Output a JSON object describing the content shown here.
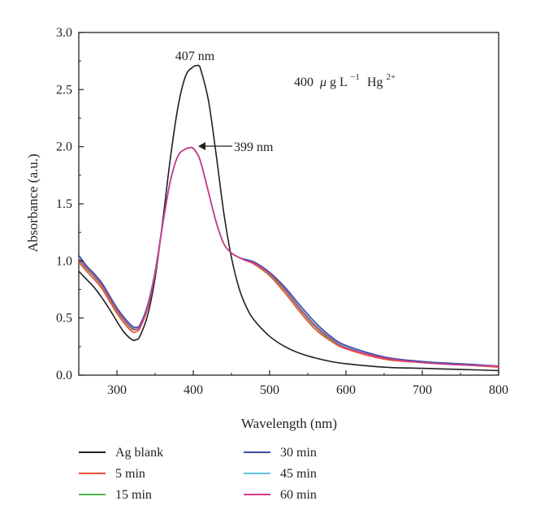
{
  "chart_data": {
    "type": "line",
    "title": "",
    "xlabel": "Wavelength (nm)",
    "ylabel": "Absorbance (a.u.)",
    "xlim": [
      250,
      800
    ],
    "ylim": [
      0,
      3.0
    ],
    "xticks": [
      "300",
      "400",
      "500",
      "600",
      "700",
      "800"
    ],
    "yticks": [
      "0.0",
      "0.5",
      "1.0",
      "1.5",
      "2.0",
      "2.5",
      "3.0"
    ],
    "grid": false,
    "legend_position": "bottom",
    "annotations": {
      "peak_blank": "407 nm",
      "peak_sample": "399 nm",
      "condition": {
        "amount": "400",
        "mu": "μ",
        "g": "g L",
        "sup1": "−1",
        "ion": "Hg",
        "sup2": "2+"
      }
    },
    "series": [
      {
        "name": "Ag blank",
        "color": "#231f20",
        "x": [
          250,
          260,
          270,
          280,
          290,
          300,
          310,
          320,
          325,
          330,
          340,
          350,
          360,
          370,
          380,
          390,
          400,
          405,
          407,
          410,
          420,
          430,
          440,
          450,
          460,
          470,
          480,
          500,
          520,
          540,
          560,
          580,
          600,
          650,
          700,
          750,
          800
        ],
        "y": [
          0.91,
          0.84,
          0.77,
          0.68,
          0.58,
          0.47,
          0.37,
          0.31,
          0.31,
          0.34,
          0.52,
          0.85,
          1.35,
          1.9,
          2.35,
          2.62,
          2.7,
          2.71,
          2.71,
          2.67,
          2.4,
          1.93,
          1.42,
          1.03,
          0.76,
          0.59,
          0.48,
          0.34,
          0.25,
          0.19,
          0.15,
          0.12,
          0.1,
          0.07,
          0.06,
          0.05,
          0.04
        ]
      },
      {
        "name": "5 min",
        "color": "#e8502f",
        "x": [
          250,
          260,
          270,
          280,
          290,
          300,
          310,
          320,
          325,
          330,
          340,
          350,
          360,
          370,
          380,
          390,
          395,
          399,
          405,
          410,
          420,
          430,
          440,
          450,
          460,
          470,
          480,
          500,
          520,
          540,
          560,
          580,
          600,
          650,
          700,
          750,
          800
        ],
        "y": [
          0.99,
          0.91,
          0.84,
          0.76,
          0.65,
          0.54,
          0.45,
          0.38,
          0.38,
          0.41,
          0.58,
          0.89,
          1.32,
          1.7,
          1.92,
          1.98,
          1.99,
          1.99,
          1.94,
          1.86,
          1.6,
          1.34,
          1.15,
          1.07,
          1.03,
          1.0,
          0.97,
          0.87,
          0.72,
          0.55,
          0.4,
          0.3,
          0.23,
          0.14,
          0.11,
          0.09,
          0.07
        ]
      },
      {
        "name": "15 min",
        "color": "#4db848",
        "x": [
          250,
          260,
          270,
          280,
          290,
          300,
          310,
          320,
          325,
          330,
          340,
          350,
          360,
          370,
          380,
          390,
          395,
          399,
          405,
          410,
          420,
          430,
          440,
          450,
          460,
          470,
          480,
          500,
          520,
          540,
          560,
          580,
          600,
          650,
          700,
          750,
          800
        ],
        "y": [
          1.01,
          0.93,
          0.86,
          0.78,
          0.67,
          0.56,
          0.47,
          0.4,
          0.4,
          0.42,
          0.59,
          0.9,
          1.32,
          1.7,
          1.92,
          1.98,
          1.99,
          1.99,
          1.94,
          1.86,
          1.6,
          1.34,
          1.15,
          1.07,
          1.03,
          1.0,
          0.98,
          0.88,
          0.74,
          0.57,
          0.42,
          0.31,
          0.24,
          0.15,
          0.11,
          0.09,
          0.08
        ]
      },
      {
        "name": "30 min",
        "color": "#3c4fa3",
        "x": [
          250,
          260,
          270,
          280,
          290,
          300,
          310,
          320,
          325,
          330,
          340,
          350,
          360,
          370,
          380,
          390,
          395,
          399,
          405,
          410,
          420,
          430,
          440,
          450,
          460,
          470,
          480,
          500,
          520,
          540,
          560,
          580,
          600,
          650,
          700,
          750,
          800
        ],
        "y": [
          1.05,
          0.96,
          0.89,
          0.81,
          0.7,
          0.59,
          0.5,
          0.43,
          0.42,
          0.44,
          0.61,
          0.91,
          1.33,
          1.7,
          1.92,
          1.98,
          1.99,
          1.99,
          1.94,
          1.86,
          1.6,
          1.34,
          1.15,
          1.07,
          1.03,
          1.01,
          0.99,
          0.9,
          0.77,
          0.61,
          0.46,
          0.34,
          0.26,
          0.16,
          0.12,
          0.1,
          0.08
        ]
      },
      {
        "name": "45 min",
        "color": "#5bc3e0",
        "x": [
          250,
          260,
          270,
          280,
          290,
          300,
          310,
          320,
          325,
          330,
          340,
          350,
          360,
          370,
          380,
          390,
          395,
          399,
          405,
          410,
          420,
          430,
          440,
          450,
          460,
          470,
          480,
          500,
          520,
          540,
          560,
          580,
          600,
          650,
          700,
          750,
          800
        ],
        "y": [
          1.03,
          0.95,
          0.88,
          0.8,
          0.69,
          0.58,
          0.49,
          0.42,
          0.41,
          0.43,
          0.6,
          0.9,
          1.32,
          1.7,
          1.92,
          1.98,
          1.99,
          1.99,
          1.94,
          1.86,
          1.6,
          1.34,
          1.15,
          1.07,
          1.03,
          1.01,
          0.98,
          0.89,
          0.76,
          0.59,
          0.44,
          0.33,
          0.25,
          0.15,
          0.12,
          0.09,
          0.08
        ]
      },
      {
        "name": "60 min",
        "color": "#d83a8c",
        "x": [
          250,
          260,
          270,
          280,
          290,
          300,
          310,
          320,
          325,
          330,
          340,
          350,
          360,
          370,
          380,
          390,
          395,
          399,
          405,
          410,
          420,
          430,
          440,
          450,
          460,
          470,
          480,
          500,
          520,
          540,
          560,
          580,
          600,
          650,
          700,
          750,
          800
        ],
        "y": [
          1.02,
          0.94,
          0.87,
          0.79,
          0.68,
          0.57,
          0.48,
          0.41,
          0.4,
          0.42,
          0.59,
          0.9,
          1.32,
          1.7,
          1.92,
          1.98,
          1.99,
          1.99,
          1.94,
          1.86,
          1.6,
          1.34,
          1.15,
          1.07,
          1.03,
          1.0,
          0.98,
          0.89,
          0.75,
          0.58,
          0.43,
          0.32,
          0.24,
          0.15,
          0.11,
          0.09,
          0.08
        ]
      }
    ]
  }
}
